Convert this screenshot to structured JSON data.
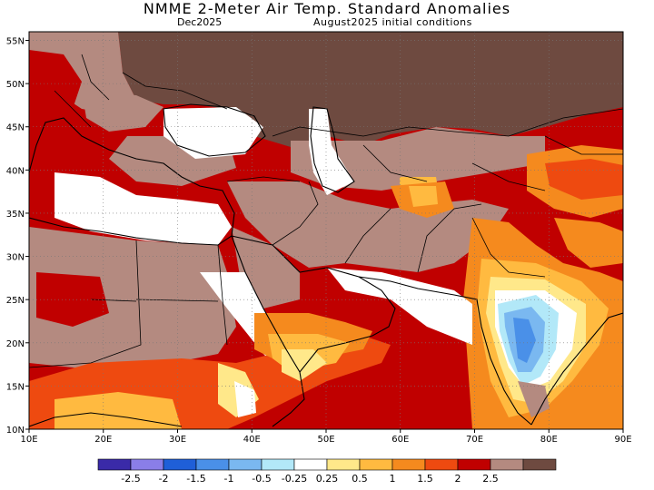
{
  "header": {
    "title": "NMME 2-Meter Air Temp. Standard Anomalies",
    "valid_month": "Dec2025",
    "initial_conditions": "August2025 initial conditions"
  },
  "map": {
    "lon_range": [
      10,
      90
    ],
    "lat_range": [
      10,
      56
    ],
    "x_ticks": [
      {
        "value": 10,
        "label": "10E"
      },
      {
        "value": 20,
        "label": "20E"
      },
      {
        "value": 30,
        "label": "30E"
      },
      {
        "value": 40,
        "label": "40E"
      },
      {
        "value": 50,
        "label": "50E"
      },
      {
        "value": 60,
        "label": "60E"
      },
      {
        "value": 70,
        "label": "70E"
      },
      {
        "value": 80,
        "label": "80E"
      },
      {
        "value": 90,
        "label": "90E"
      }
    ],
    "y_ticks": [
      {
        "value": 10,
        "label": "10N"
      },
      {
        "value": 15,
        "label": "15N"
      },
      {
        "value": 20,
        "label": "20N"
      },
      {
        "value": 25,
        "label": "25N"
      },
      {
        "value": 30,
        "label": "30N"
      },
      {
        "value": 35,
        "label": "35N"
      },
      {
        "value": 40,
        "label": "40N"
      },
      {
        "value": 45,
        "label": "45N"
      },
      {
        "value": 50,
        "label": "50N"
      },
      {
        "value": 55,
        "label": "55N"
      }
    ]
  },
  "colorbar": {
    "colors": [
      "#3a2aa8",
      "#8a7ee8",
      "#1f5fd8",
      "#4a90e8",
      "#7ab8f0",
      "#b2e8f8",
      "#ffffff",
      "#ffe88a",
      "#ffba40",
      "#f58a1e",
      "#ee4a10",
      "#c00000",
      "#b48a80",
      "#6e4a40"
    ],
    "ticks": [
      "-2.5",
      "-2",
      "-1.5",
      "-1",
      "-0.5",
      "-0.25",
      "0.25",
      "0.5",
      "1",
      "1.5",
      "2",
      "2.5"
    ]
  }
}
